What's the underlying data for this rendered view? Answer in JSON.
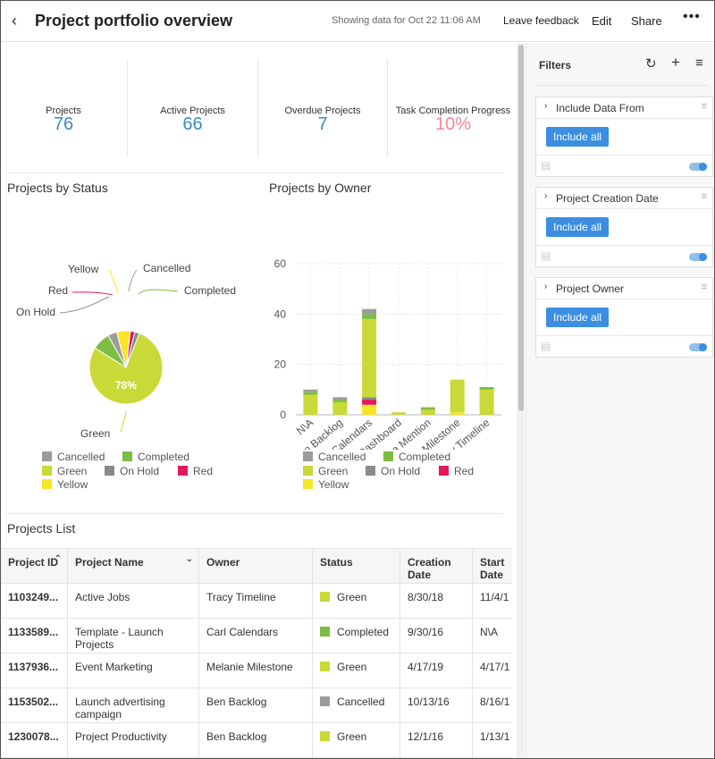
{
  "header": {
    "title": "Project portfolio overview",
    "meta": "Showing data for Oct 22 11:06 AM",
    "feedback": "Leave feedback",
    "edit": "Edit",
    "share": "Share",
    "more": "•••"
  },
  "kpis": [
    {
      "label": "Projects",
      "value": "76"
    },
    {
      "label": "Active Projects",
      "value": "66"
    },
    {
      "label": "Overdue Projects",
      "value": "7"
    },
    {
      "label": "Task Completion Progress",
      "value": "10%"
    }
  ],
  "colors": {
    "cancelled": "#9b9b9b",
    "completed": "#7cbd42",
    "green": "#c9d938",
    "on_hold": "#8a8a8a",
    "red": "#e2185b",
    "yellow": "#f7e528",
    "kpi_blue": "#3a8bbf",
    "kpi_red": "#f08a93",
    "accent": "#3b8ee0"
  },
  "status_chart": {
    "title": "Projects by Status",
    "center_label": "78%",
    "legend": [
      "Cancelled",
      "Completed",
      "Green",
      "On Hold",
      "Red",
      "Yellow"
    ]
  },
  "owner_chart": {
    "title": "Projects by Owner",
    "legend": [
      "Cancelled",
      "Completed",
      "Green",
      "On Hold",
      "Red",
      "Yellow"
    ]
  },
  "chart_data": [
    {
      "type": "pie",
      "title": "Projects by Status",
      "labels": [
        "Green",
        "Completed",
        "Cancelled",
        "Yellow",
        "Red",
        "On Hold"
      ],
      "values": [
        78,
        8,
        4,
        6,
        2,
        2
      ],
      "colors": [
        "#c9d938",
        "#7cbd42",
        "#9b9b9b",
        "#f7e528",
        "#e2185b",
        "#8a8a8a"
      ],
      "data_labels": [
        "78%",
        "",
        "",
        "",
        "",
        ""
      ],
      "legend_position": "bottom"
    },
    {
      "type": "bar",
      "stacked": true,
      "title": "Projects by Owner",
      "categories": [
        "N\\A",
        "Ben Backlog",
        "Carl Calendars",
        "Donald Dashboard",
        "Martha Mention",
        "Melanie Milestone",
        "Tracy Timeline"
      ],
      "series": [
        {
          "name": "Yellow",
          "color": "#f7e528",
          "values": [
            0,
            0,
            4,
            0,
            0,
            1,
            0
          ]
        },
        {
          "name": "Red",
          "color": "#e2185b",
          "values": [
            0,
            0,
            2,
            0,
            0,
            0,
            0
          ]
        },
        {
          "name": "On Hold",
          "color": "#8a8a8a",
          "values": [
            0,
            0,
            1,
            0,
            0,
            0,
            0
          ]
        },
        {
          "name": "Green",
          "color": "#c9d938",
          "values": [
            8,
            5,
            31,
            1,
            2,
            13,
            10
          ]
        },
        {
          "name": "Completed",
          "color": "#7cbd42",
          "values": [
            1,
            1,
            2,
            0,
            1,
            0,
            1
          ]
        },
        {
          "name": "Cancelled",
          "color": "#9b9b9b",
          "values": [
            1,
            1,
            2,
            0,
            0,
            0,
            0
          ]
        }
      ],
      "ylim": [
        0,
        60
      ],
      "yticks": [
        "0",
        "20",
        "40",
        "60"
      ],
      "grid": true,
      "legend_position": "bottom"
    }
  ],
  "projects_list": {
    "title": "Projects List",
    "columns": [
      "Project ID",
      "Project Name",
      "Owner",
      "Status",
      "Creation Date",
      "Start Date"
    ],
    "rows": [
      {
        "id": "1103249...",
        "name": "Active Jobs",
        "owner": "Tracy Timeline",
        "status": "Green",
        "status_color": "#c9d938",
        "created": "8/30/18",
        "start": "11/4/1"
      },
      {
        "id": "1133589...",
        "name": "Template - Launch Projects",
        "owner": "Carl Calendars",
        "status": "Completed",
        "status_color": "#7cbd42",
        "created": "9/30/16",
        "start": "N\\A"
      },
      {
        "id": "1137936...",
        "name": "Event Marketing",
        "owner": "Melanie Milestone",
        "status": "Green",
        "status_color": "#c9d938",
        "created": "4/17/19",
        "start": "4/17/1"
      },
      {
        "id": "1153502...",
        "name": "Launch advertising campaign",
        "owner": "Ben Backlog",
        "status": "Cancelled",
        "status_color": "#9b9b9b",
        "created": "10/13/16",
        "start": "8/16/1"
      },
      {
        "id": "1230078...",
        "name": "Project Productivity",
        "owner": "Ben Backlog",
        "status": "Green",
        "status_color": "#c9d938",
        "created": "12/1/16",
        "start": "1/13/1"
      }
    ]
  },
  "filters": {
    "title": "Filters",
    "cards": [
      {
        "label": "Include Data From",
        "button": "Include all"
      },
      {
        "label": "Project Creation Date",
        "button": "Include all"
      },
      {
        "label": "Project Owner",
        "button": "Include all"
      }
    ]
  }
}
